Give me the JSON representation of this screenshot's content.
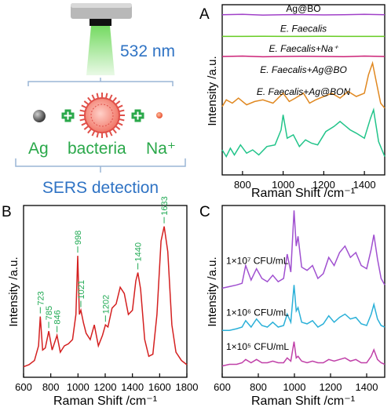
{
  "schematic": {
    "wavelength": "532 nm",
    "items": [
      "Ag",
      "bacteria",
      "Na⁺"
    ],
    "caption": "SERS detection"
  },
  "colors": {
    "laser": "#6ed85a",
    "accent_green": "#2aa84a",
    "accent_blue": "#2f73c4",
    "panel_b_line": "#d42020",
    "panel_b_peak_labels": "#22aa55"
  },
  "chart_data": [
    {
      "type": "line",
      "panel": "A",
      "xlabel": "Raman Shift /cm⁻¹",
      "ylabel": "Intensity /a.u.",
      "xlim": [
        700,
        1500
      ],
      "xticks": [
        800,
        1000,
        1200,
        1400
      ],
      "grid": false,
      "series": [
        {
          "name": "Ag@BO",
          "color": "#a040c8",
          "x": [
            700,
            800,
            900,
            1000,
            1100,
            1200,
            1300,
            1400,
            1500
          ],
          "y": [
            9.6,
            9.62,
            9.58,
            9.6,
            9.61,
            9.59,
            9.6,
            9.62,
            9.6
          ]
        },
        {
          "name": "E. Faecalis",
          "color": "#66cc22",
          "x": [
            700,
            800,
            900,
            1000,
            1100,
            1200,
            1300,
            1400,
            1500
          ],
          "y": [
            8.3,
            8.3,
            8.31,
            8.3,
            8.3,
            8.31,
            8.3,
            8.3,
            8.3
          ]
        },
        {
          "name": "E. Faecalis+Na⁺",
          "color": "#cc2277",
          "x": [
            700,
            800,
            900,
            1000,
            1100,
            1200,
            1300,
            1400,
            1500
          ],
          "y": [
            7.1,
            7.12,
            7.08,
            7.1,
            7.11,
            7.1,
            7.09,
            7.12,
            7.1
          ]
        },
        {
          "name": "E. Faecalis+Ag@BO",
          "color": "#e08820",
          "x": [
            700,
            720,
            750,
            780,
            820,
            860,
            900,
            950,
            1000,
            1030,
            1060,
            1100,
            1130,
            1160,
            1200,
            1240,
            1280,
            1320,
            1360,
            1400,
            1420,
            1440,
            1460,
            1480,
            1500
          ],
          "y": [
            4.1,
            4.5,
            4.3,
            4.6,
            4.2,
            4.4,
            4.5,
            4.3,
            4.9,
            4.4,
            4.6,
            4.9,
            4.3,
            4.5,
            4.7,
            4.9,
            4.6,
            5.0,
            4.7,
            4.9,
            6.0,
            6.7,
            5.5,
            4.3,
            4.0
          ]
        },
        {
          "name": "E. Faecalis+Ag@BON",
          "color": "#22c48a",
          "x": [
            700,
            720,
            740,
            760,
            790,
            820,
            850,
            880,
            920,
            960,
            990,
            1000,
            1020,
            1050,
            1080,
            1110,
            1140,
            1170,
            1210,
            1250,
            1280,
            1300,
            1330,
            1360,
            1400,
            1430,
            1445,
            1470,
            1500
          ],
          "y": [
            1.5,
            1.1,
            1.6,
            1.2,
            1.8,
            1.3,
            1.5,
            1.2,
            1.7,
            1.8,
            2.7,
            3.6,
            2.2,
            2.4,
            1.7,
            2.1,
            1.9,
            1.8,
            2.6,
            2.9,
            3.2,
            3.0,
            2.7,
            2.5,
            2.2,
            3.4,
            3.9,
            2.0,
            1.1
          ]
        }
      ]
    },
    {
      "type": "line",
      "panel": "B",
      "xlabel": "Raman Shift /cm⁻¹",
      "ylabel": "Intensity /a.u.",
      "xlim": [
        600,
        1800
      ],
      "ylim": [
        0,
        10
      ],
      "xticks": [
        600,
        800,
        1000,
        1200,
        1400,
        1600,
        1800
      ],
      "grid": false,
      "series": [
        {
          "name": "",
          "color": "#d42020",
          "x": [
            600,
            640,
            680,
            710,
            723,
            740,
            760,
            785,
            810,
            846,
            870,
            900,
            930,
            960,
            985,
            998,
            1010,
            1021,
            1040,
            1060,
            1090,
            1120,
            1150,
            1180,
            1202,
            1220,
            1250,
            1280,
            1310,
            1340,
            1370,
            1400,
            1425,
            1440,
            1460,
            1490,
            1520,
            1550,
            1580,
            1610,
            1633,
            1660,
            1690,
            1720,
            1760,
            1800
          ],
          "y": [
            0.5,
            0.6,
            0.8,
            1.5,
            2.9,
            1.3,
            1.4,
            2.2,
            1.3,
            2.0,
            1.2,
            1.5,
            1.6,
            1.8,
            3.0,
            5.8,
            3.0,
            3.2,
            2.6,
            2.1,
            1.8,
            2.5,
            1.5,
            2.0,
            2.5,
            2.4,
            3.3,
            3.5,
            4.3,
            4.0,
            3.0,
            3.2,
            4.6,
            5.0,
            4.2,
            1.8,
            1.0,
            1.1,
            3.0,
            6.5,
            7.2,
            6.0,
            2.5,
            1.2,
            0.8,
            0.6
          ]
        }
      ],
      "annotations": [
        {
          "label": "723",
          "x": 723
        },
        {
          "label": "785",
          "x": 785
        },
        {
          "label": "846",
          "x": 846
        },
        {
          "label": "998",
          "x": 998
        },
        {
          "label": "1021",
          "x": 1021
        },
        {
          "label": "1202",
          "x": 1202
        },
        {
          "label": "1440",
          "x": 1440
        },
        {
          "label": "1633",
          "x": 1633
        }
      ]
    },
    {
      "type": "line",
      "panel": "C",
      "xlabel": "Raman Shift /cm⁻¹",
      "ylabel": "Intensity /a.u.",
      "xlim": [
        600,
        1500
      ],
      "xticks": [
        600,
        800,
        1000,
        1200,
        1400
      ],
      "grid": false,
      "series": [
        {
          "name": "1×10⁷ CFU/mL",
          "color": "#a050d0",
          "x": [
            600,
            640,
            680,
            710,
            730,
            760,
            790,
            820,
            850,
            880,
            910,
            940,
            960,
            980,
            998,
            1010,
            1020,
            1040,
            1070,
            1100,
            1130,
            1160,
            1190,
            1220,
            1250,
            1280,
            1310,
            1340,
            1370,
            1400,
            1425,
            1440,
            1460,
            1480,
            1500
          ],
          "y": [
            5.4,
            5.5,
            5.6,
            5.7,
            6.8,
            5.9,
            6.6,
            6.0,
            5.8,
            6.2,
            5.8,
            6.0,
            7.5,
            6.4,
            10.2,
            8.0,
            8.6,
            6.7,
            6.5,
            6.8,
            6.0,
            6.3,
            7.3,
            6.8,
            7.6,
            8.0,
            7.3,
            7.6,
            6.8,
            6.6,
            7.8,
            8.7,
            7.2,
            6.0,
            5.6
          ]
        },
        {
          "name": "1×10⁶ CFU/mL",
          "color": "#2ab0d8",
          "x": [
            600,
            640,
            680,
            710,
            730,
            760,
            790,
            820,
            850,
            880,
            910,
            940,
            960,
            980,
            998,
            1010,
            1020,
            1040,
            1070,
            1100,
            1130,
            1160,
            1190,
            1220,
            1250,
            1280,
            1310,
            1340,
            1370,
            1400,
            1425,
            1440,
            1460,
            1480,
            1500
          ],
          "y": [
            2.8,
            2.8,
            2.9,
            3.0,
            3.4,
            3.0,
            3.5,
            3.1,
            3.0,
            3.3,
            3.0,
            3.1,
            3.8,
            3.3,
            5.6,
            4.0,
            4.2,
            3.3,
            3.2,
            3.4,
            3.0,
            3.2,
            3.7,
            3.3,
            3.6,
            3.8,
            3.5,
            3.6,
            3.2,
            3.1,
            3.8,
            4.4,
            3.5,
            3.1,
            3.0
          ]
        },
        {
          "name": "1×10⁵ CFU/mL",
          "color": "#c040a8",
          "x": [
            600,
            640,
            680,
            710,
            730,
            760,
            790,
            820,
            850,
            880,
            910,
            940,
            960,
            980,
            998,
            1010,
            1020,
            1040,
            1070,
            1100,
            1130,
            1160,
            1190,
            1220,
            1250,
            1280,
            1310,
            1340,
            1370,
            1400,
            1425,
            1440,
            1460,
            1480,
            1500
          ],
          "y": [
            0.6,
            0.7,
            0.7,
            0.8,
            1.0,
            0.8,
            1.0,
            0.8,
            0.8,
            0.9,
            0.8,
            0.8,
            1.1,
            0.9,
            2.1,
            1.1,
            1.2,
            0.9,
            0.8,
            0.9,
            0.8,
            0.8,
            1.0,
            0.9,
            1.0,
            1.1,
            0.9,
            1.0,
            0.8,
            0.8,
            1.2,
            1.6,
            1.0,
            0.8,
            0.7
          ]
        }
      ]
    }
  ]
}
